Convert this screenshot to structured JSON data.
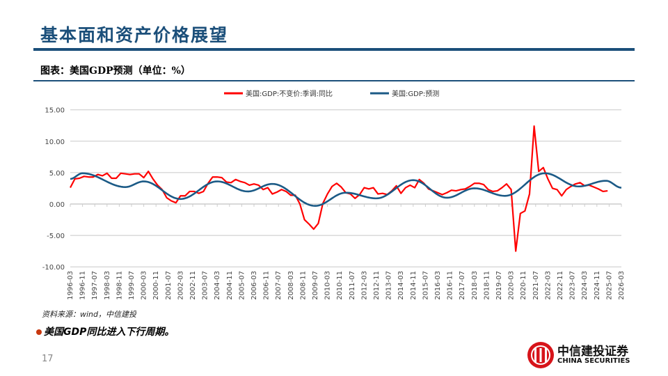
{
  "header": {
    "title": "基本面和资产价格展望",
    "subtitle": "图表：美国GDP预测（单位：%）"
  },
  "chart_data": {
    "type": "line",
    "title": "",
    "xlabel": "",
    "ylabel": "",
    "ylim": [
      -10,
      15
    ],
    "yticks": [
      "15.00",
      "10.00",
      "5.00",
      "0.00",
      "-5.00",
      "-10.00"
    ],
    "ytick_values": [
      15,
      10,
      5,
      0,
      -5,
      -10
    ],
    "grid": true,
    "legend": "top",
    "x_start": "1996-03",
    "x_end": "2026-03",
    "frequency": "quarterly",
    "xticks": [
      "1996-03",
      "1996-11",
      "1997-07",
      "1998-03",
      "1998-11",
      "1999-07",
      "2000-03",
      "2000-11",
      "2001-07",
      "2002-03",
      "2002-11",
      "2003-07",
      "2004-03",
      "2004-11",
      "2005-07",
      "2006-03",
      "2006-11",
      "2007-07",
      "2008-03",
      "2008-11",
      "2009-07",
      "2010-03",
      "2010-11",
      "2011-07",
      "2012-03",
      "2012-11",
      "2013-07",
      "2014-03",
      "2014-11",
      "2015-07",
      "2016-03",
      "2016-11",
      "2017-07",
      "2018-03",
      "2018-11",
      "2019-07",
      "2020-03",
      "2020-11",
      "2021-07",
      "2022-03",
      "2022-11",
      "2023-07",
      "2024-03",
      "2024-11",
      "2025-07",
      "2026-03"
    ],
    "series": [
      {
        "name": "美国:GDP:不变价:季调:同比",
        "color": "#ff0000",
        "start": "1996-03",
        "values": [
          2.6,
          4.0,
          4.1,
          4.4,
          4.3,
          4.3,
          4.7,
          4.5,
          4.9,
          4.1,
          4.1,
          4.9,
          4.8,
          4.7,
          4.8,
          4.8,
          4.2,
          5.2,
          4.0,
          3.0,
          2.3,
          1.0,
          0.5,
          0.2,
          1.3,
          1.3,
          2.0,
          2.0,
          1.7,
          2.0,
          3.3,
          4.3,
          4.3,
          4.2,
          3.5,
          3.4,
          3.9,
          3.6,
          3.4,
          3.0,
          3.2,
          3.0,
          2.3,
          2.6,
          1.6,
          1.9,
          2.3,
          2.0,
          1.4,
          1.4,
          0.0,
          -2.5,
          -3.2,
          -4.0,
          -3.1,
          0.1,
          1.6,
          2.8,
          3.3,
          2.7,
          1.8,
          1.6,
          0.9,
          1.5,
          2.6,
          2.4,
          2.6,
          1.6,
          1.7,
          1.5,
          2.1,
          2.9,
          1.7,
          2.6,
          3.0,
          2.6,
          3.9,
          3.3,
          2.4,
          2.1,
          1.8,
          1.5,
          1.8,
          2.2,
          2.1,
          2.3,
          2.4,
          2.8,
          3.3,
          3.3,
          3.1,
          2.3,
          2.0,
          2.1,
          2.6,
          3.2,
          2.3,
          -7.5,
          -1.5,
          -1.1,
          1.6,
          12.4,
          5.2,
          5.8,
          4.0,
          2.5,
          2.3,
          1.3,
          2.3,
          2.8,
          3.2,
          3.4,
          2.9,
          3.0,
          2.7,
          2.4,
          2.0,
          2.1
        ]
      },
      {
        "name": "美国:GDP:预测",
        "color": "#1b5a86",
        "points": [
          [
            "1996-03",
            4.0
          ],
          [
            "1996-11",
            4.9
          ],
          [
            "1999-03",
            2.7
          ],
          [
            "2000-03",
            3.6
          ],
          [
            "2002-03",
            0.8
          ],
          [
            "2004-03",
            3.6
          ],
          [
            "2005-11",
            2.0
          ],
          [
            "2007-03",
            3.2
          ],
          [
            "2009-07",
            -0.3
          ],
          [
            "2011-03",
            1.8
          ],
          [
            "2012-11",
            0.9
          ],
          [
            "2014-11",
            3.8
          ],
          [
            "2016-09",
            1.0
          ],
          [
            "2018-03",
            2.5
          ],
          [
            "2019-11",
            1.3
          ],
          [
            "2022-01",
            4.9
          ],
          [
            "2023-11",
            2.8
          ],
          [
            "2025-05",
            3.7
          ],
          [
            "2026-03",
            2.6
          ]
        ]
      }
    ]
  },
  "footer": {
    "source": "资料来源：wind，中信建投",
    "bullet": "美国GDP同比进入下行周期。",
    "page_number": "17"
  },
  "logo": {
    "cn": "中信建投证券",
    "en": "CHINA SECURITIES"
  }
}
